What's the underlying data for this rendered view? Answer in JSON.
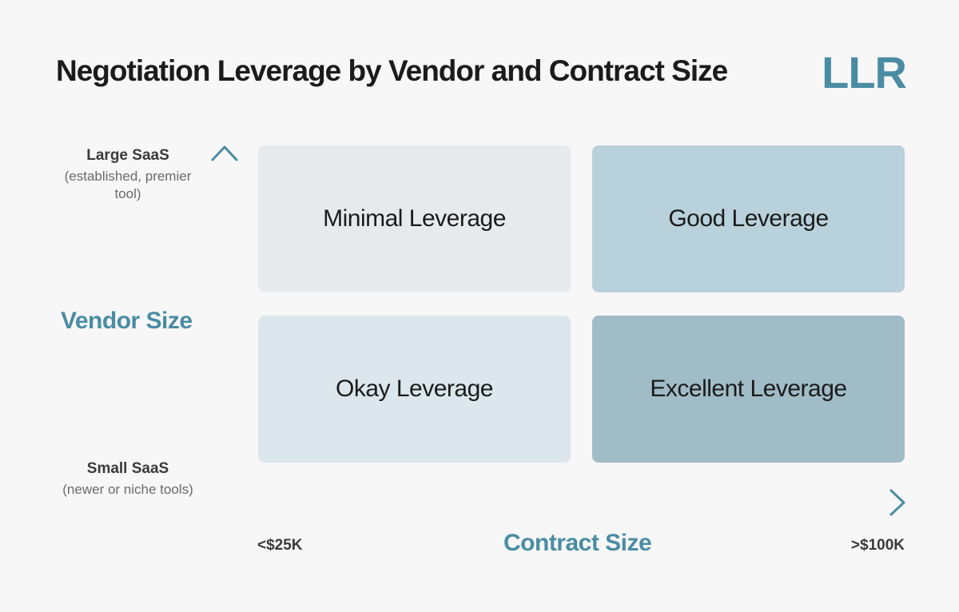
{
  "title": "Negotiation Leverage by Vendor and Contract Size",
  "logo": "LLR",
  "colors": {
    "accent": "#4a8ca3",
    "minimal": "#e7eaec",
    "good": "#b9d1da",
    "okay": "#dbe7ec",
    "excellent": "#a0bcc6"
  },
  "y_axis": {
    "title": "Vendor Size",
    "top_label": "Large SaaS",
    "top_sub": "(established, premier tool)",
    "bottom_label": "Small SaaS",
    "bottom_sub": "(newer or niche tools)"
  },
  "x_axis": {
    "title": "Contract Size",
    "left_label": "<$25K",
    "right_label": ">$100K"
  },
  "quadrants": {
    "top_left": "Minimal Leverage",
    "top_right": "Good Leverage",
    "bottom_left": "Okay Leverage",
    "bottom_right": "Excellent Leverage"
  }
}
